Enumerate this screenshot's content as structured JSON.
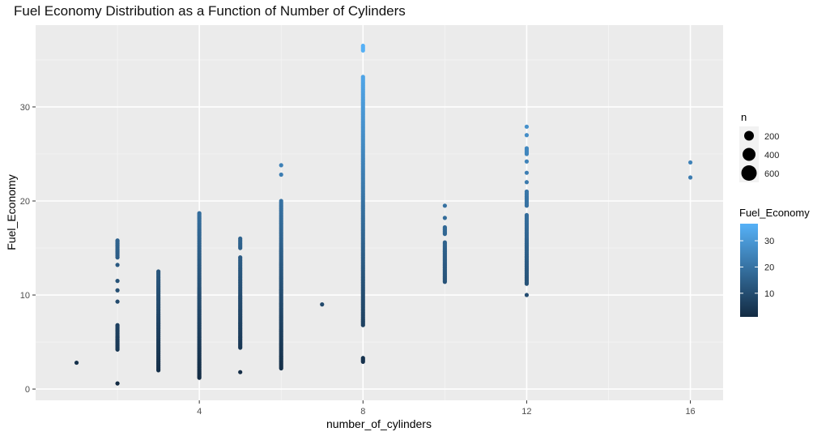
{
  "chart_data": {
    "type": "scatter",
    "title": "Fuel Economy Distribution as a Function of Number of Cylinders",
    "xlabel": "number_of_cylinders",
    "ylabel": "Fuel_Economy",
    "xlim": [
      0,
      16.8
    ],
    "ylim": [
      -1.2,
      38.7
    ],
    "x_ticks": [
      4,
      8,
      12,
      16
    ],
    "y_ticks": [
      0,
      10,
      20,
      30
    ],
    "grid": true,
    "legend_position": "right",
    "size_legend": {
      "title": "n",
      "values": [
        200,
        400,
        600
      ]
    },
    "color_legend": {
      "title": "Fuel_Economy",
      "ticks": [
        10,
        20,
        30
      ],
      "range": [
        1,
        36.5
      ],
      "low_color": "#132B43",
      "high_color": "#56B1F7"
    },
    "groups": [
      {
        "x": 1,
        "points": [
          2.8
        ]
      },
      {
        "x": 2,
        "points": [
          0.6,
          4.2,
          4.5,
          4.8,
          5.2,
          5.6,
          6.1,
          6.8,
          9.3,
          10.5,
          11.5,
          13.2,
          14.0,
          14.5,
          15.2,
          15.6,
          15.8
        ]
      },
      {
        "x": 3,
        "points": [
          2.0,
          2.3,
          2.6,
          3.0,
          3.3,
          3.6,
          3.9,
          4.2,
          4.5,
          4.8,
          5.1,
          5.4,
          5.7,
          6.0,
          6.4,
          6.8,
          7.2,
          7.6,
          8.0,
          8.5,
          9.0,
          9.5,
          10.1,
          10.8,
          11.5,
          12.0,
          12.5
        ]
      },
      {
        "x": 4,
        "points": [
          1.2,
          1.6,
          2.0,
          2.4,
          2.8,
          3.2,
          3.6,
          4.0,
          4.4,
          4.8,
          5.2,
          5.6,
          6.0,
          6.4,
          6.8,
          7.2,
          7.6,
          8.0,
          8.4,
          8.8,
          9.2,
          9.6,
          10.0,
          10.4,
          10.8,
          11.3,
          11.8,
          12.3,
          12.8,
          13.3,
          13.8,
          14.3,
          14.8,
          15.3,
          15.8,
          16.3,
          17.0,
          17.5,
          18.0,
          18.7
        ]
      },
      {
        "x": 5,
        "points": [
          1.8,
          4.4,
          4.8,
          5.2,
          5.6,
          6.0,
          6.4,
          6.8,
          7.2,
          7.6,
          8.0,
          8.4,
          8.8,
          9.2,
          9.6,
          10.0,
          10.5,
          11.0,
          11.5,
          12.0,
          12.5,
          13.0,
          13.5,
          14.0,
          15.0,
          15.5,
          16.0
        ]
      },
      {
        "x": 6,
        "points": [
          2.2,
          2.6,
          3.0,
          3.4,
          3.8,
          4.2,
          4.6,
          5.0,
          5.4,
          5.8,
          6.2,
          6.6,
          7.0,
          7.4,
          7.8,
          8.2,
          8.6,
          9.0,
          9.4,
          9.8,
          10.2,
          10.6,
          11.0,
          11.4,
          11.8,
          12.2,
          12.6,
          13.0,
          13.4,
          13.8,
          14.2,
          14.6,
          15.0,
          15.5,
          16.0,
          16.5,
          17.0,
          17.5,
          18.0,
          18.5,
          19.0,
          19.5,
          20.0,
          22.8,
          23.8
        ]
      },
      {
        "x": 7,
        "points": [
          9.0
        ]
      },
      {
        "x": 8,
        "points": [
          2.9,
          3.3,
          6.8,
          7.5,
          8.0,
          8.5,
          9.0,
          9.5,
          10.0,
          10.5,
          11.0,
          11.5,
          12.0,
          12.5,
          13.0,
          13.5,
          14.0,
          14.5,
          15.0,
          15.5,
          16.0,
          16.5,
          17.0,
          17.5,
          18.0,
          18.5,
          19.0,
          19.5,
          20.0,
          20.5,
          21.0,
          21.5,
          22.0,
          22.5,
          23.0,
          23.5,
          24.0,
          24.5,
          25.0,
          25.5,
          26.0,
          26.5,
          27.0,
          27.5,
          28.0,
          28.5,
          29.0,
          29.5,
          30.0,
          30.5,
          31.0,
          31.5,
          32.0,
          32.6,
          33.2,
          36.0,
          36.5
        ]
      },
      {
        "x": 10,
        "points": [
          11.4,
          11.8,
          12.2,
          12.6,
          13.0,
          13.4,
          13.8,
          14.2,
          14.6,
          15.0,
          15.6,
          16.5,
          17.2,
          18.2,
          19.5
        ]
      },
      {
        "x": 12,
        "points": [
          10.0,
          11.2,
          11.6,
          12.0,
          12.4,
          12.8,
          13.2,
          13.6,
          14.0,
          14.4,
          14.8,
          15.2,
          15.6,
          16.0,
          16.5,
          17.0,
          17.5,
          18.0,
          18.5,
          19.5,
          20.0,
          20.5,
          21.0,
          22.0,
          23.0,
          24.2,
          25.0,
          25.6,
          27.0,
          27.9
        ]
      },
      {
        "x": 16,
        "points": [
          22.5,
          24.1
        ]
      }
    ]
  }
}
